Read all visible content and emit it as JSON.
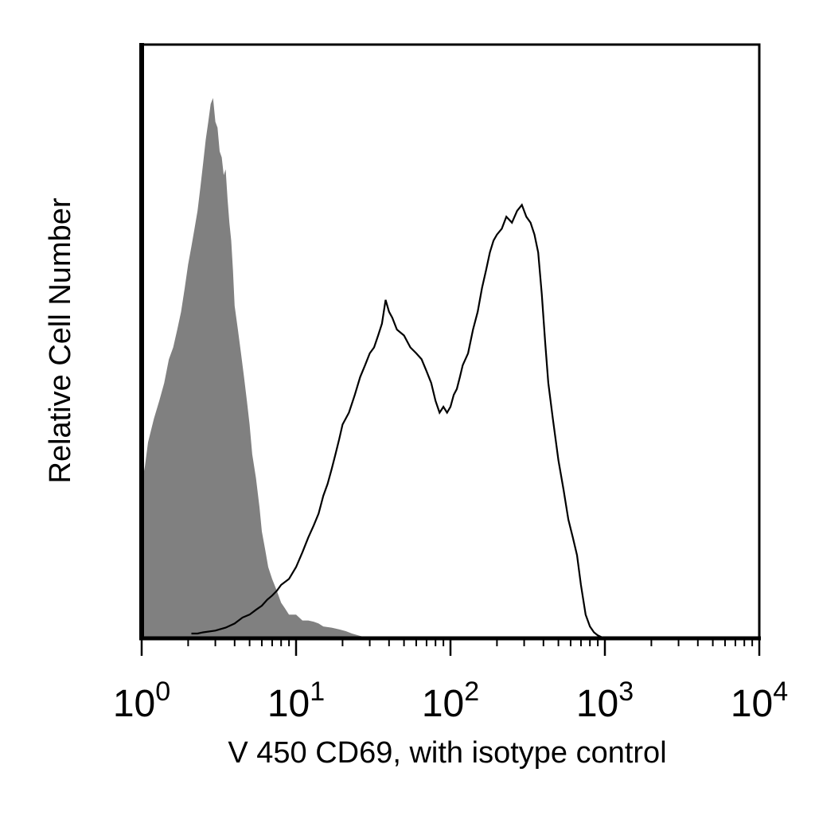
{
  "chart_data": {
    "type": "area",
    "title": "",
    "xlabel": "V 450 CD69, with isotype control",
    "ylabel": "Relative Cell Number",
    "xscale": "log",
    "xlim": [
      1,
      10000
    ],
    "ylim": [
      0,
      100
    ],
    "grid": false,
    "x_ticks": [
      {
        "base": "10",
        "exp": "0",
        "value": 1
      },
      {
        "base": "10",
        "exp": "1",
        "value": 10
      },
      {
        "base": "10",
        "exp": "2",
        "value": 100
      },
      {
        "base": "10",
        "exp": "3",
        "value": 1000
      },
      {
        "base": "10",
        "exp": "4",
        "value": 10000
      }
    ],
    "series": [
      {
        "role": "isotype control",
        "style": "filled",
        "color": "#808080",
        "x": [
          1,
          1.05,
          1.1,
          1.2,
          1.3,
          1.4,
          1.5,
          1.6,
          1.7,
          1.8,
          1.9,
          2.0,
          2.1,
          2.2,
          2.3,
          2.4,
          2.5,
          2.6,
          2.7,
          2.8,
          2.9,
          3.0,
          3.1,
          3.2,
          3.3,
          3.4,
          3.5,
          3.6,
          3.7,
          3.8,
          3.9,
          4.0,
          4.2,
          4.4,
          4.6,
          4.8,
          5.0,
          5.2,
          5.5,
          5.8,
          6.0,
          6.3,
          6.6,
          7.0,
          7.5,
          8.0,
          8.5,
          9.0,
          10.0,
          11.0,
          12.0,
          13.0,
          14.0,
          15.0,
          17.0,
          19.0,
          21.0,
          23.0,
          26.0,
          30.0
        ],
        "values": [
          26,
          29,
          33,
          37,
          40,
          43,
          47,
          49,
          52,
          55,
          59,
          63,
          66,
          69,
          72,
          76,
          80,
          84,
          87,
          90,
          91,
          87,
          86,
          82,
          81,
          78,
          79,
          74,
          70,
          67,
          62,
          56,
          52,
          48,
          44,
          40,
          36,
          31,
          27,
          22,
          18,
          15,
          12,
          10,
          8,
          6,
          5,
          4,
          4,
          3,
          3,
          2.8,
          2.5,
          2.0,
          1.8,
          1.5,
          1.2,
          0.8,
          0.4,
          0
        ]
      },
      {
        "role": "CD69",
        "style": "outline",
        "color": "#000000",
        "x": [
          2.1,
          2.3,
          2.5,
          3.0,
          3.5,
          4.0,
          4.5,
          5.0,
          5.5,
          6.0,
          6.5,
          7.0,
          7.5,
          8.0,
          9.0,
          10.0,
          11.0,
          12.0,
          13.0,
          14.0,
          15.0,
          16.0,
          17.0,
          18.0,
          19.0,
          20.0,
          22.0,
          24.0,
          26.0,
          28.0,
          30.0,
          32.0,
          34.0,
          36.0,
          38.0,
          40.0,
          42.0,
          45.0,
          50.0,
          55.0,
          60.0,
          65.0,
          70.0,
          75.0,
          80.0,
          85.0,
          90.0,
          95.0,
          100.0,
          105.0,
          110.0,
          115.0,
          120.0,
          130.0,
          140.0,
          150.0,
          160.0,
          170.0,
          180.0,
          190.0,
          200.0,
          215.0,
          230.0,
          250.0,
          270.0,
          290.0,
          310.0,
          330.0,
          350.0,
          370.0,
          390.0,
          410.0,
          430.0,
          460.0,
          500.0,
          540.0,
          580.0,
          620.0,
          660.0,
          700.0,
          750.0,
          800.0,
          850.0,
          900.0,
          950.0,
          1000.0
        ],
        "values": [
          0.8,
          0.8,
          1.0,
          1.3,
          1.8,
          2.5,
          3.5,
          4.0,
          4.8,
          5.5,
          6.5,
          7.2,
          8.0,
          9.0,
          10.0,
          12.0,
          14.5,
          17.0,
          19.0,
          21.0,
          24.0,
          26.0,
          28.5,
          31.0,
          33.5,
          36.0,
          38.0,
          41.0,
          44.0,
          46.0,
          48.0,
          49.0,
          51.0,
          53.0,
          57.0,
          55.0,
          54.0,
          52.0,
          51.0,
          49.0,
          48.0,
          47.0,
          45.0,
          43.0,
          40.0,
          38.0,
          39.0,
          38.0,
          39.0,
          41.0,
          42.0,
          44.0,
          46.0,
          48.0,
          52.0,
          55.0,
          59.0,
          62.0,
          65.0,
          67.0,
          68.0,
          69.0,
          71.0,
          70.0,
          72.0,
          73.0,
          71.0,
          70.0,
          68.0,
          65.0,
          58.0,
          50.0,
          43.0,
          37.0,
          30.0,
          25.0,
          20.0,
          17.0,
          14.0,
          9.0,
          4.0,
          2.0,
          1.0,
          0.5,
          0.2,
          0
        ]
      }
    ]
  }
}
